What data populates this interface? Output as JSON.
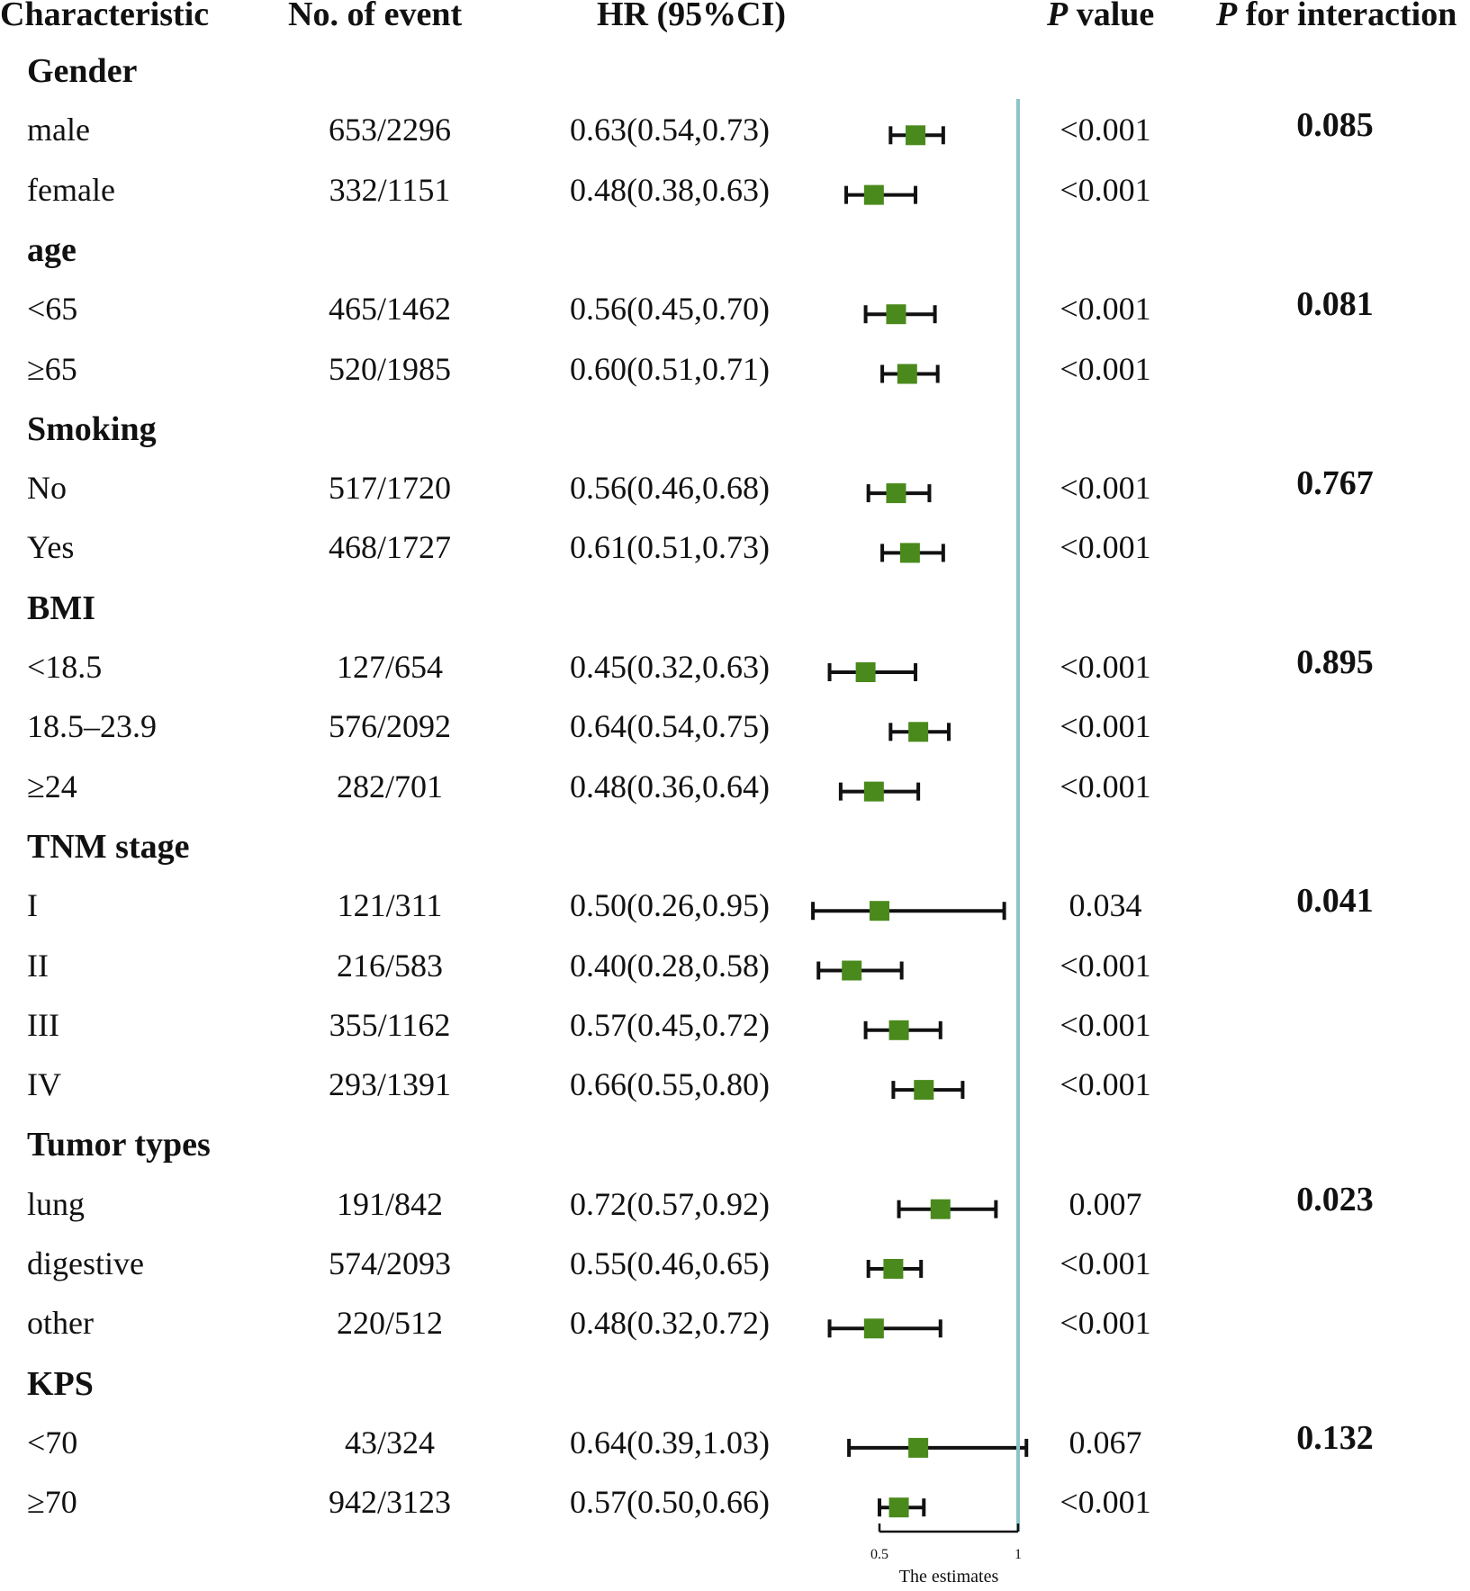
{
  "headers": {
    "characteristic": "Characteristic",
    "events": "No. of event",
    "hr": "HR (95%CI)",
    "p_italic": "P",
    "p_rest": " value",
    "pint_italic": "P",
    "pint_rest": " for interaction"
  },
  "chart_data": {
    "type": "forest",
    "xlabel": "The estimates",
    "x_ticks": [
      0.5,
      1
    ],
    "x_tick_labels": [
      "0.5",
      "1"
    ],
    "xlim": [
      0.5,
      1
    ],
    "reference_line": 1,
    "colors": {
      "point": "#4a8a1c",
      "reference": "#8ec3cc",
      "line": "#111111"
    },
    "groups": [
      {
        "name": "Gender",
        "p_interaction": "0.085",
        "rows": [
          {
            "label": "male",
            "events": "653/2296",
            "hr_text": "0.63(0.54,0.73)",
            "hr": 0.63,
            "lo": 0.54,
            "hi": 0.73,
            "p": "<0.001"
          },
          {
            "label": "female",
            "events": "332/1151",
            "hr_text": "0.48(0.38,0.63)",
            "hr": 0.48,
            "lo": 0.38,
            "hi": 0.63,
            "p": "<0.001"
          }
        ]
      },
      {
        "name": "age",
        "p_interaction": "0.081",
        "rows": [
          {
            "label": "<65",
            "events": "465/1462",
            "hr_text": "0.56(0.45,0.70)",
            "hr": 0.56,
            "lo": 0.45,
            "hi": 0.7,
            "p": "<0.001"
          },
          {
            "label": "≥65",
            "events": "520/1985",
            "hr_text": "0.60(0.51,0.71)",
            "hr": 0.6,
            "lo": 0.51,
            "hi": 0.71,
            "p": "<0.001"
          }
        ]
      },
      {
        "name": "Smoking",
        "p_interaction": "0.767",
        "rows": [
          {
            "label": "No",
            "events": "517/1720",
            "hr_text": "0.56(0.46,0.68)",
            "hr": 0.56,
            "lo": 0.46,
            "hi": 0.68,
            "p": "<0.001"
          },
          {
            "label": "Yes",
            "events": "468/1727",
            "hr_text": "0.61(0.51,0.73)",
            "hr": 0.61,
            "lo": 0.51,
            "hi": 0.73,
            "p": "<0.001"
          }
        ]
      },
      {
        "name": "BMI",
        "p_interaction": "0.895",
        "rows": [
          {
            "label": "<18.5",
            "events": "127/654",
            "hr_text": "0.45(0.32,0.63)",
            "hr": 0.45,
            "lo": 0.32,
            "hi": 0.63,
            "p": "<0.001"
          },
          {
            "label": "18.5–23.9",
            "events": "576/2092",
            "hr_text": "0.64(0.54,0.75)",
            "hr": 0.64,
            "lo": 0.54,
            "hi": 0.75,
            "p": "<0.001"
          },
          {
            "label": "≥24",
            "events": "282/701",
            "hr_text": "0.48(0.36,0.64)",
            "hr": 0.48,
            "lo": 0.36,
            "hi": 0.64,
            "p": "<0.001"
          }
        ]
      },
      {
        "name": "TNM stage",
        "p_interaction": "0.041",
        "rows": [
          {
            "label": "I",
            "events": "121/311",
            "hr_text": "0.50(0.26,0.95)",
            "hr": 0.5,
            "lo": 0.26,
            "hi": 0.95,
            "p": "0.034"
          },
          {
            "label": "II",
            "events": "216/583",
            "hr_text": "0.40(0.28,0.58)",
            "hr": 0.4,
            "lo": 0.28,
            "hi": 0.58,
            "p": "<0.001"
          },
          {
            "label": "III",
            "events": "355/1162",
            "hr_text": "0.57(0.45,0.72)",
            "hr": 0.57,
            "lo": 0.45,
            "hi": 0.72,
            "p": "<0.001"
          },
          {
            "label": "IV",
            "events": "293/1391",
            "hr_text": "0.66(0.55,0.80)",
            "hr": 0.66,
            "lo": 0.55,
            "hi": 0.8,
            "p": "<0.001"
          }
        ]
      },
      {
        "name": "Tumor types",
        "p_interaction": "0.023",
        "rows": [
          {
            "label": "lung",
            "events": "191/842",
            "hr_text": "0.72(0.57,0.92)",
            "hr": 0.72,
            "lo": 0.57,
            "hi": 0.92,
            "p": "0.007"
          },
          {
            "label": "digestive",
            "events": "574/2093",
            "hr_text": "0.55(0.46,0.65)",
            "hr": 0.55,
            "lo": 0.46,
            "hi": 0.65,
            "p": "<0.001"
          },
          {
            "label": "other",
            "events": "220/512",
            "hr_text": "0.48(0.32,0.72)",
            "hr": 0.48,
            "lo": 0.32,
            "hi": 0.72,
            "p": "<0.001"
          }
        ]
      },
      {
        "name": "KPS",
        "p_interaction": "0.132",
        "rows": [
          {
            "label": "<70",
            "events": "43/324",
            "hr_text": "0.64(0.39,1.03)",
            "hr": 0.64,
            "lo": 0.39,
            "hi": 1.03,
            "p": "0.067"
          },
          {
            "label": "≥70",
            "events": "942/3123",
            "hr_text": "0.57(0.50,0.66)",
            "hr": 0.57,
            "lo": 0.5,
            "hi": 0.66,
            "p": "<0.001"
          }
        ]
      }
    ]
  }
}
